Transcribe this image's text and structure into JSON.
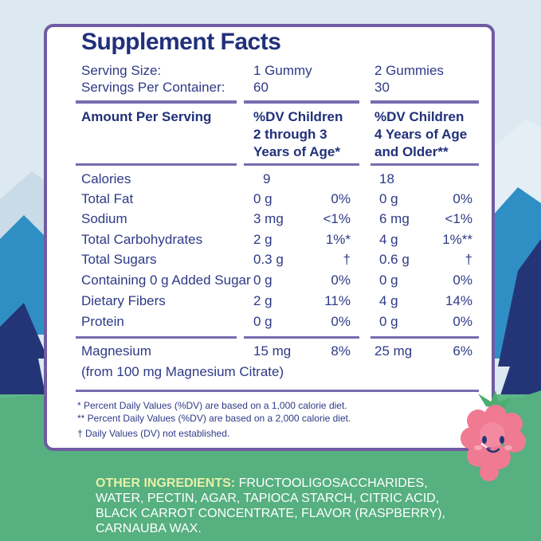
{
  "title": "Supplement Facts",
  "serving": {
    "size_label": "Serving Size:",
    "size_child": "1 Gummy",
    "size_adult": "2 Gummies",
    "per_container_label": "Servings Per Container:",
    "per_container_child": "60",
    "per_container_adult": "30"
  },
  "headers": {
    "amount": "Amount Per Serving",
    "child_line1": "%DV Children",
    "child_line2": "2 through 3",
    "child_line3": "Years of Age*",
    "adult_line1": "%DV Children",
    "adult_line2": "4 Years of Age",
    "adult_line3": "and Older**"
  },
  "rows": [
    {
      "name": "Calories",
      "c_amt": "9",
      "c_dv": "",
      "a_amt": "18",
      "a_dv": ""
    },
    {
      "name": "Total Fat",
      "c_amt": "0 g",
      "c_dv": "0%",
      "a_amt": "0 g",
      "a_dv": "0%"
    },
    {
      "name": "Sodium",
      "c_amt": "3 mg",
      "c_dv": "<1%",
      "a_amt": "6 mg",
      "a_dv": "<1%"
    },
    {
      "name": "Total Carbohydrates",
      "c_amt": "2 g",
      "c_dv": "1%*",
      "a_amt": "4 g",
      "a_dv": "1%**"
    },
    {
      "name": "Total Sugars",
      "c_amt": "0.3 g",
      "c_dv": "†",
      "a_amt": "0.6 g",
      "a_dv": "†"
    },
    {
      "name": "Containing 0 g Added Sugar",
      "c_amt": "0 g",
      "c_dv": "0%",
      "a_amt": "0 g",
      "a_dv": "0%"
    },
    {
      "name": "Dietary Fibers",
      "c_amt": "2 g",
      "c_dv": "11%",
      "a_amt": "4 g",
      "a_dv": "14%"
    },
    {
      "name": "Protein",
      "c_amt": "0 g",
      "c_dv": "0%",
      "a_amt": "0 g",
      "a_dv": "0%"
    }
  ],
  "magnesium": {
    "name": "Magnesium",
    "c_amt": "15 mg",
    "c_dv": "8%",
    "a_amt": "25 mg",
    "a_dv": "6%",
    "source": "(from 100 mg Magnesium Citrate)"
  },
  "footnotes": [
    "* Percent Daily Values (%DV) are based on a 1,000 calorie diet.",
    "** Percent Daily Values (%DV) are based on a 2,000 calorie diet.",
    "† Daily Values (DV) not established."
  ],
  "ingredients": {
    "label": "OTHER INGREDIENTS:",
    "text": " FRUCTOOLIGOSACCHARIDES, WATER, PECTIN, AGAR, TAPIOCA STARCH, CITRIC ACID, BLACK CARROT CONCENTRATE, FLAVOR (RASPBERRY), CARNAUBA WAX."
  },
  "colors": {
    "navy": "#21307a",
    "purple_border": "#6f5ba3",
    "grass": "#5fb88a",
    "mountain_blue": "#2f8fc4",
    "tree_navy": "#243577",
    "raspberry": "#f07a92"
  }
}
